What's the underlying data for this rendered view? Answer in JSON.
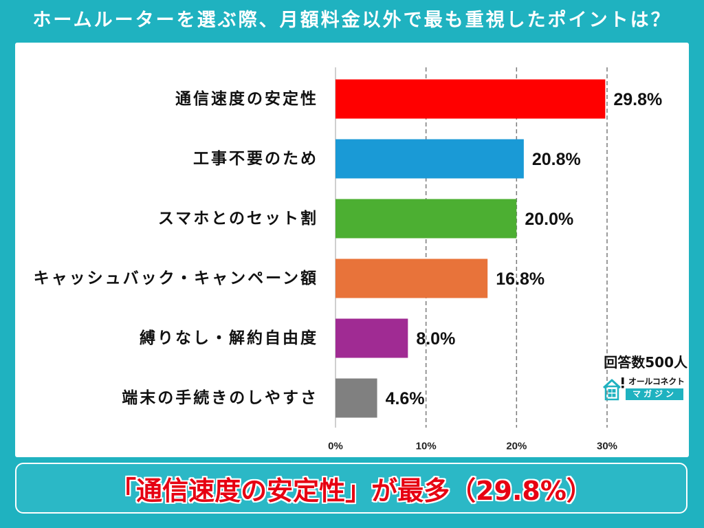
{
  "colors": {
    "background": "#1fb2c0",
    "panel": "#ffffff",
    "summary_text": "#e60012"
  },
  "icons": {
    "logo": "house-icon"
  },
  "logo": {
    "line1": "オールコネクト",
    "line2": "マガジン"
  },
  "summary": {
    "text": "「通信速度の安定性」が最多（29.8%）"
  },
  "chart_data": {
    "type": "bar",
    "orientation": "horizontal",
    "title": "ホームルーターを選ぶ際、月額料金以外で最も重視したポイントは？",
    "categories": [
      "通信速度の安定性",
      "工事不要のため",
      "スマホとのセット割",
      "キャッシュバック・キャンペーン額",
      "縛りなし・解約自由度",
      "端末の手続きのしやすさ"
    ],
    "values": [
      29.8,
      20.8,
      20.0,
      16.8,
      8.0,
      4.6
    ],
    "value_labels": [
      "29.8%",
      "20.8%",
      "20.0%",
      "16.8%",
      "8.0%",
      "4.6%"
    ],
    "colors": [
      "#ff0000",
      "#1a9ad6",
      "#4caf32",
      "#e8733a",
      "#a02b93",
      "#808080"
    ],
    "xlim": [
      0,
      30
    ],
    "xticks": [
      0,
      10,
      20,
      30
    ],
    "xtick_labels": [
      "0%",
      "10%",
      "20%",
      "30%"
    ],
    "grid": "vertical dashed",
    "legend": "none",
    "annotations": [
      "回答数500人"
    ]
  }
}
